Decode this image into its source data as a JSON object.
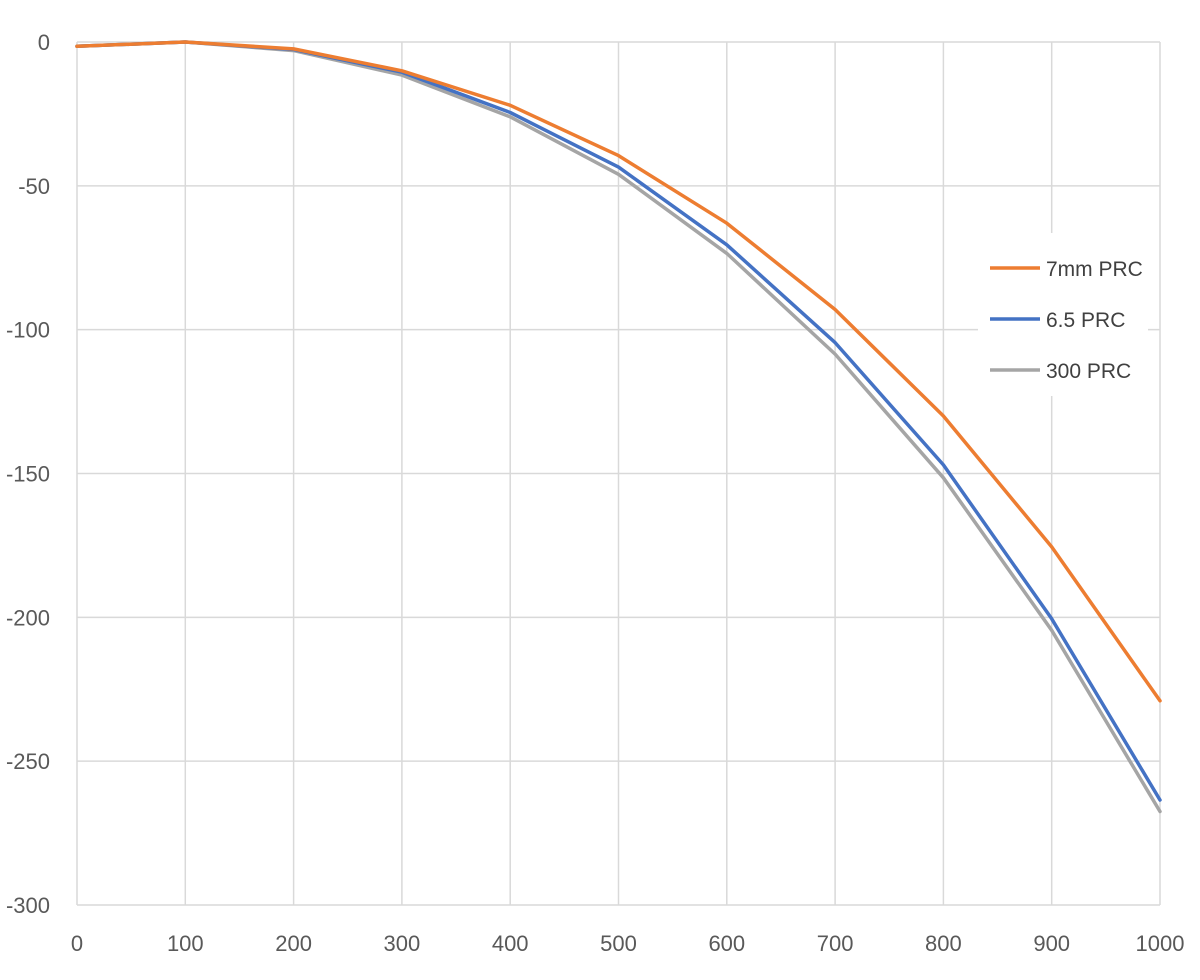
{
  "chart_data": {
    "type": "line",
    "title": "",
    "xlabel": "",
    "ylabel": "",
    "x": [
      0,
      100,
      200,
      300,
      400,
      500,
      600,
      700,
      800,
      900,
      1000
    ],
    "xlim": [
      0,
      1000
    ],
    "ylim": [
      -300,
      0
    ],
    "x_ticks": [
      "0",
      "100",
      "200",
      "300",
      "400",
      "500",
      "600",
      "700",
      "800",
      "900",
      "1000"
    ],
    "y_ticks": [
      "0",
      "-50",
      "-100",
      "-150",
      "-200",
      "-250",
      "-300"
    ],
    "grid": true,
    "legend_position": "right",
    "series": [
      {
        "name": "7mm PRC",
        "color": "#ed7d31",
        "values": [
          -1.5,
          0,
          -2.4,
          -10,
          -22,
          -39.5,
          -63,
          -93,
          -130,
          -175.5,
          -229
        ]
      },
      {
        "name": "6.5 PRC",
        "color": "#4472c4",
        "values": [
          -1.5,
          0,
          -2.6,
          -10.5,
          -24.5,
          -43.5,
          -70.5,
          -104.5,
          -147,
          -200.5,
          -263.5
        ]
      },
      {
        "name": "300 PRC",
        "color": "#a5a5a5",
        "values": [
          -1.5,
          0,
          -3,
          -11.5,
          -26,
          -46,
          -73.5,
          -108.5,
          -151.5,
          -204.5,
          -267.5
        ]
      }
    ]
  }
}
